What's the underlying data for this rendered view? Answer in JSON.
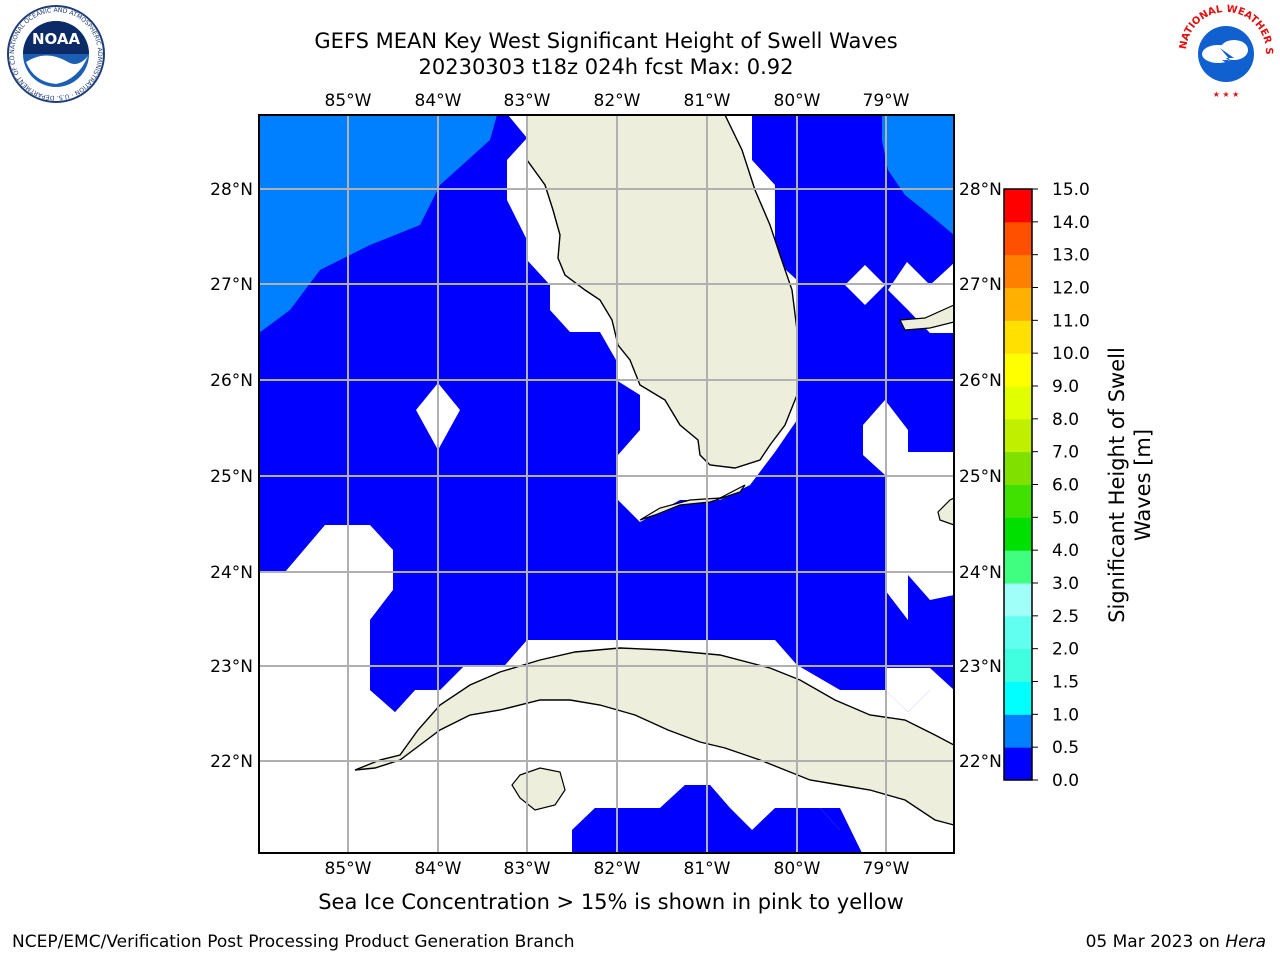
{
  "header": {
    "title_line1": "GEFS MEAN Key West Significant Height of Swell Waves",
    "title_line2": "20230303 t18z 024h fcst   Max: 0.92"
  },
  "map": {
    "lon_labels": [
      "85°W",
      "84°W",
      "83°W",
      "82°W",
      "81°W",
      "80°W",
      "79°W"
    ],
    "lat_labels": [
      "28°N",
      "27°N",
      "26°N",
      "25°N",
      "24°N",
      "23°N",
      "22°N"
    ],
    "colors": {
      "sea_light": "#0080ff",
      "sea_dark": "#0000ff",
      "land": "#eeeedd",
      "grid": "#b0b0b0"
    }
  },
  "colorbar": {
    "label": "Significant Height of Swell Waves [m]",
    "label_line1": "Significant Height of Swell",
    "label_line2": "Waves [m]",
    "ticks": [
      "0.0",
      "0.5",
      "1.0",
      "1.5",
      "2.0",
      "2.5",
      "3.0",
      "4.0",
      "5.0",
      "6.0",
      "7.0",
      "8.0",
      "9.0",
      "10.0",
      "11.0",
      "12.0",
      "13.0",
      "14.0",
      "15.0"
    ],
    "colors": [
      "#0000ff",
      "#0080ff",
      "#00ffff",
      "#40ffe0",
      "#60fff0",
      "#a0fff8",
      "#40ff80",
      "#00e000",
      "#40e000",
      "#80e000",
      "#c0f000",
      "#e0ff00",
      "#ffff00",
      "#ffe000",
      "#ffb000",
      "#ff8000",
      "#ff5000",
      "#ff2000",
      "#ff0000"
    ]
  },
  "note": "Sea Ice Concentration > 15% is shown in pink to yellow",
  "footer": {
    "left": "NCEP/EMC/Verification Post Processing Product Generation Branch",
    "date": "05 Mar 2023 on ",
    "host": "Hera"
  },
  "logos": {
    "noaa": "NOAA",
    "noaa_ring": "NATIONAL OCEANIC AND ATMOSPHERIC ADMINISTRATION · U.S. DEPARTMENT OF COMMERCE",
    "nws": "NATIONAL WEATHER SERVICE"
  }
}
